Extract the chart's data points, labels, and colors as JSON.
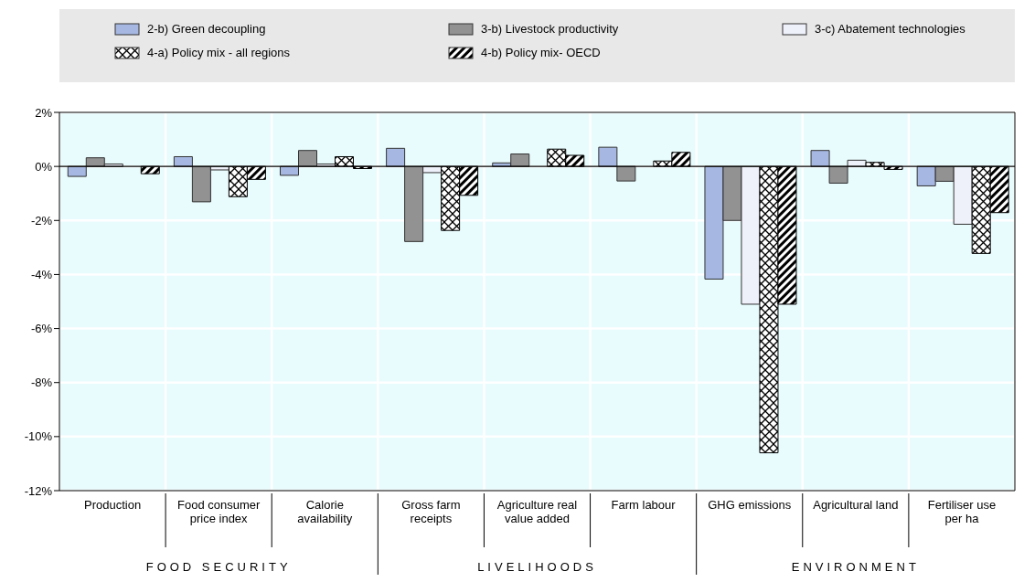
{
  "chart_data": {
    "type": "bar",
    "categories": [
      "Production",
      "Food consumer price index",
      "Calorie availability",
      "Gross farm receipts",
      "Agriculture real value added",
      "Farm labour",
      "GHG emissions",
      "Agricultural land",
      "Fertiliser use per ha"
    ],
    "series": [
      {
        "name": "2-b) Green decoupling",
        "color": "#a6b8e2",
        "values": [
          -0.37,
          0.36,
          -0.33,
          0.67,
          0.13,
          0.71,
          -4.17,
          0.59,
          -0.72
        ]
      },
      {
        "name": "3-b) Livestock productivity",
        "color": "#929292",
        "values": [
          0.32,
          -1.31,
          0.59,
          -2.78,
          0.46,
          -0.54,
          -2.0,
          -0.62,
          -0.55
        ]
      },
      {
        "name": "3-c) Abatement technologies",
        "color": "#eef0fa",
        "values": [
          0.09,
          -0.13,
          0.09,
          -0.23,
          null,
          null,
          -5.1,
          0.23,
          -2.14
        ]
      },
      {
        "name": "4-a) Policy mix - all regions",
        "color": "#000000",
        "values": [
          null,
          -1.12,
          0.36,
          -2.37,
          0.64,
          0.2,
          -10.6,
          0.15,
          -3.22
        ]
      },
      {
        "name": "4-b) Policy mix- OECD",
        "color": "#000000",
        "values": [
          -0.27,
          -0.48,
          -0.08,
          -1.07,
          0.41,
          0.52,
          -5.1,
          -0.11,
          -1.71
        ]
      }
    ],
    "ylim": [
      -12,
      2
    ],
    "yticks": [
      {
        "value": -12,
        "label": "-12%"
      },
      {
        "value": -10,
        "label": "-10%"
      },
      {
        "value": -8,
        "label": "-8%"
      },
      {
        "value": -6,
        "label": "-6%"
      },
      {
        "value": -4,
        "label": "-4%"
      },
      {
        "value": -2,
        "label": "-2%"
      },
      {
        "value": 0,
        "label": "0%"
      },
      {
        "value": 2,
        "label": "2%"
      }
    ],
    "ref_lines": [
      {
        "axis": "y",
        "value": 0,
        "color": "#000000"
      }
    ],
    "annotations": [
      "FOOD SECURITY",
      "LIVELIHOODS",
      "ENVIRONMENT"
    ],
    "grid": true,
    "legend": "top"
  }
}
